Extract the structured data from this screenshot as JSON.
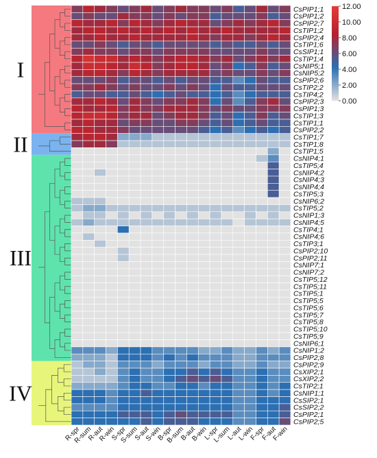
{
  "chart_data": {
    "type": "heatmap",
    "title": "",
    "xlabel": "",
    "ylabel": "",
    "columns": [
      "R-spr",
      "R-sum",
      "R-aut",
      "R-win",
      "S-spr",
      "S-sum",
      "S-aut",
      "S-win",
      "B-spr",
      "B-sum",
      "B-aut",
      "B-win",
      "L-spr",
      "L-sum",
      "L-aut",
      "L-win",
      "F-spr",
      "F-aut",
      "F-win"
    ],
    "rows": [
      "CsPIP1;1",
      "CsPIP1;2",
      "CsPIP2;7",
      "CsTIP1;2",
      "CsPIP2;4",
      "CsTIP1;6",
      "CsSIP1;1",
      "CsTIP1;4",
      "CsNIP5;1",
      "CsNIP5;2",
      "CsPIP2;6",
      "CsTIP2;2",
      "CsTIP4;2",
      "CsPIP2;3",
      "CsPIP1;3",
      "CsTIP1;3",
      "CsTIP1;1",
      "CsPIP2;2",
      "CsTIP1;7",
      "CsTIP1;8",
      "CsTIP1;5",
      "CsNIP4;1",
      "CsTIP5;4",
      "CsNIP4;2",
      "CsNIP4;3",
      "CsNIP4;4",
      "CsTIP5;3",
      "CsNIP6;2",
      "CsTIP5;2",
      "CsNIP1;3",
      "CsNIP4;5",
      "CsTIP4;1",
      "CsNIP4;6",
      "CsTIP3;1",
      "CsPIP2;10",
      "CsPIP2;11",
      "CsNIP7;1",
      "CsNIP7;2",
      "CsTIP5;12",
      "CsTIP5;11",
      "CsTIP5;1",
      "CsTIP5;5",
      "CsTIP5;6",
      "CsTIP5;7",
      "CsTIP5;8",
      "CsTIP5;10",
      "CsTIP5;9",
      "CsNIP6;1",
      "CsNIP1;2",
      "CsPIP2;8",
      "CsPIP2;9",
      "CsXIP2;1",
      "CsXIP2;2",
      "CsTIP2;1",
      "CsNIP1;1",
      "CsSIP2;1",
      "CsSIP2;2",
      "CsPIP2;1",
      "CsPIP2;5"
    ],
    "values": [
      [
        7,
        9,
        8,
        7,
        6,
        7,
        8,
        6,
        7,
        8,
        7,
        7,
        6,
        7,
        5,
        6,
        8,
        6,
        7
      ],
      [
        6,
        7,
        6,
        6,
        8,
        7,
        7,
        6,
        7,
        6,
        7,
        7,
        5,
        6,
        6,
        6,
        7,
        5,
        6
      ],
      [
        9,
        8,
        8,
        9,
        7,
        9,
        8,
        7,
        8,
        9,
        8,
        8,
        6,
        7,
        8,
        7,
        8,
        9,
        7
      ],
      [
        8,
        9,
        9,
        8,
        9,
        8,
        9,
        8,
        9,
        8,
        9,
        8,
        8,
        9,
        8,
        8,
        8,
        8,
        9
      ],
      [
        8,
        8,
        9,
        8,
        8,
        9,
        8,
        8,
        8,
        8,
        9,
        8,
        7,
        8,
        8,
        7,
        8,
        9,
        8
      ],
      [
        6,
        6,
        7,
        6,
        5,
        6,
        6,
        5,
        6,
        6,
        6,
        6,
        5,
        6,
        5,
        5,
        6,
        5,
        6
      ],
      [
        7,
        8,
        7,
        7,
        6,
        7,
        7,
        6,
        7,
        7,
        7,
        7,
        6,
        6,
        6,
        6,
        7,
        6,
        6
      ],
      [
        9,
        11,
        10,
        10,
        8,
        9,
        8,
        7,
        8,
        9,
        9,
        8,
        7,
        8,
        6,
        7,
        8,
        7,
        8
      ],
      [
        8,
        10,
        10,
        9,
        8,
        10,
        9,
        7,
        8,
        9,
        9,
        8,
        6,
        7,
        4,
        5,
        7,
        5,
        6
      ],
      [
        8,
        9,
        9,
        8,
        7,
        9,
        8,
        7,
        8,
        8,
        8,
        8,
        6,
        7,
        6,
        6,
        7,
        6,
        7
      ],
      [
        6,
        6,
        6,
        7,
        5,
        6,
        6,
        5,
        6,
        5,
        6,
        6,
        5,
        5,
        3,
        4,
        6,
        5,
        5
      ],
      [
        7,
        7,
        8,
        7,
        6,
        7,
        6,
        6,
        7,
        6,
        7,
        6,
        4,
        6,
        5,
        5,
        6,
        6,
        6
      ],
      [
        5,
        6,
        6,
        5,
        5,
        6,
        5,
        4,
        5,
        6,
        5,
        5,
        4,
        5,
        3,
        4,
        5,
        5,
        5
      ],
      [
        8,
        8,
        9,
        8,
        6,
        8,
        7,
        6,
        7,
        7,
        8,
        7,
        4,
        6,
        3,
        5,
        7,
        8,
        6
      ],
      [
        9,
        8,
        8,
        9,
        7,
        8,
        7,
        7,
        8,
        8,
        8,
        7,
        6,
        7,
        6,
        6,
        7,
        7,
        7
      ],
      [
        9,
        10,
        10,
        9,
        7,
        8,
        8,
        6,
        7,
        8,
        8,
        7,
        5,
        6,
        4,
        5,
        7,
        5,
        6
      ],
      [
        8,
        9,
        8,
        8,
        6,
        7,
        7,
        6,
        6,
        7,
        7,
        6,
        5,
        6,
        4,
        5,
        6,
        5,
        5
      ],
      [
        9,
        9,
        8,
        8,
        7,
        6,
        6,
        6,
        6,
        6,
        6,
        5,
        4,
        5,
        3,
        4,
        5,
        4,
        5
      ],
      [
        8,
        9,
        9,
        8,
        2,
        2,
        2,
        1,
        1,
        1,
        1,
        1,
        1,
        1,
        1,
        1,
        1,
        1,
        1
      ],
      [
        7,
        8,
        8,
        7,
        1,
        1,
        1,
        1,
        1,
        1,
        1,
        1,
        1,
        1,
        1,
        1,
        1,
        1,
        1
      ],
      [
        0,
        0,
        0,
        0,
        0,
        0,
        0,
        0,
        0,
        0,
        0,
        0,
        0,
        0,
        0,
        0,
        0,
        2,
        0
      ],
      [
        0,
        0,
        0,
        0,
        0,
        0,
        0,
        0,
        0,
        0,
        0,
        0,
        0,
        0,
        0,
        0,
        1,
        3,
        0
      ],
      [
        0,
        0,
        0,
        0,
        0,
        0,
        0,
        0,
        0,
        0,
        0,
        0,
        0,
        0,
        0,
        0,
        0,
        5,
        0
      ],
      [
        0,
        0,
        1,
        0,
        0,
        0,
        0,
        0,
        0,
        0,
        0,
        0,
        0,
        0,
        0,
        0,
        0,
        5,
        0
      ],
      [
        0,
        0,
        0,
        0,
        0,
        0,
        0,
        0,
        0,
        0,
        0,
        0,
        0,
        0,
        0,
        0,
        0,
        5,
        0
      ],
      [
        0,
        0,
        0,
        0,
        0,
        0,
        0,
        0,
        0,
        0,
        0,
        0,
        0,
        0,
        0,
        0,
        0,
        5,
        0
      ],
      [
        0,
        0,
        0,
        0,
        0,
        0,
        0,
        0,
        0,
        0,
        0,
        0,
        0,
        0,
        0,
        0,
        0,
        5,
        0
      ],
      [
        1,
        1,
        1,
        0,
        0,
        0,
        0,
        0,
        0,
        0,
        0,
        0,
        0,
        0,
        0,
        0,
        0,
        0,
        0
      ],
      [
        1,
        2,
        2,
        1,
        1,
        1,
        1,
        1,
        1,
        1,
        1,
        1,
        1,
        1,
        1,
        1,
        1,
        1,
        1
      ],
      [
        0,
        1,
        1,
        0,
        1,
        0,
        1,
        0,
        1,
        0,
        1,
        0,
        1,
        0,
        0,
        1,
        0,
        1,
        0
      ],
      [
        1,
        2,
        1,
        1,
        1,
        1,
        1,
        1,
        1,
        1,
        1,
        1,
        1,
        1,
        0,
        1,
        1,
        1,
        1
      ],
      [
        0,
        0,
        0,
        0,
        4,
        0,
        0,
        0,
        0,
        0,
        0,
        0,
        0,
        0,
        0,
        0,
        0,
        0,
        0
      ],
      [
        0,
        1,
        0,
        0,
        0,
        0,
        0,
        0,
        0,
        0,
        0,
        0,
        0,
        0,
        0,
        0,
        0,
        0,
        0
      ],
      [
        0,
        0,
        1,
        0,
        0,
        0,
        0,
        0,
        0,
        0,
        0,
        0,
        0,
        0,
        0,
        0,
        0,
        0,
        0
      ],
      [
        0,
        0,
        0,
        0,
        1,
        0,
        0,
        0,
        0,
        0,
        0,
        0,
        0,
        0,
        0,
        0,
        0,
        0,
        0
      ],
      [
        0,
        0,
        0,
        0,
        1,
        0,
        0,
        0,
        0,
        0,
        0,
        0,
        0,
        0,
        0,
        0,
        0,
        0,
        0
      ],
      [
        0,
        0,
        0,
        0,
        0,
        0,
        0,
        0,
        0,
        0,
        0,
        0,
        0,
        0,
        0,
        0,
        0,
        0,
        0
      ],
      [
        0,
        0,
        0,
        0,
        0,
        0,
        0,
        0,
        0,
        0,
        0,
        0,
        0,
        0,
        0,
        0,
        0,
        0,
        0
      ],
      [
        0,
        0,
        0,
        0,
        0,
        0,
        0,
        0,
        0,
        0,
        0,
        0,
        0,
        0,
        0,
        0,
        0,
        0,
        0
      ],
      [
        0,
        0,
        0,
        0,
        0,
        0,
        0,
        0,
        0,
        0,
        0,
        0,
        0,
        0,
        0,
        0,
        0,
        0,
        0
      ],
      [
        0,
        0,
        0,
        0,
        0,
        0,
        0,
        0,
        0,
        0,
        0,
        0,
        0,
        0,
        0,
        0,
        0,
        0,
        0
      ],
      [
        0,
        0,
        0,
        0,
        0,
        0,
        0,
        0,
        0,
        0,
        0,
        0,
        0,
        0,
        0,
        0,
        0,
        0,
        0
      ],
      [
        0,
        0,
        0,
        0,
        0,
        0,
        0,
        0,
        0,
        0,
        0,
        0,
        0,
        0,
        0,
        0,
        0,
        0,
        0
      ],
      [
        0,
        0,
        0,
        0,
        0,
        0,
        0,
        0,
        0,
        0,
        0,
        0,
        0,
        0,
        0,
        0,
        0,
        0,
        0
      ],
      [
        0,
        0,
        0,
        0,
        0,
        0,
        0,
        0,
        0,
        0,
        0,
        0,
        0,
        0,
        0,
        0,
        0,
        0,
        0
      ],
      [
        0,
        0,
        0,
        0,
        0,
        0,
        0,
        0,
        0,
        0,
        0,
        0,
        0,
        0,
        0,
        0,
        0,
        0,
        0
      ],
      [
        0,
        0,
        0,
        0,
        0,
        0,
        0,
        0,
        0,
        0,
        0,
        0,
        0,
        0,
        0,
        0,
        0,
        0,
        0
      ],
      [
        0,
        0,
        0,
        0,
        0,
        0,
        0,
        0,
        0,
        0,
        0,
        0,
        0,
        0,
        0,
        0,
        0,
        0,
        0
      ],
      [
        3,
        3,
        3,
        2,
        4,
        4,
        4,
        3,
        3,
        3,
        3,
        2,
        2,
        3,
        2,
        2,
        3,
        2,
        3
      ],
      [
        2,
        2,
        2,
        1,
        4,
        4,
        4,
        3,
        4,
        3,
        4,
        3,
        3,
        3,
        2,
        2,
        3,
        3,
        3
      ],
      [
        1,
        2,
        2,
        1,
        3,
        3,
        3,
        2,
        3,
        3,
        3,
        2,
        3,
        3,
        2,
        2,
        3,
        2,
        2
      ],
      [
        1,
        1,
        2,
        1,
        3,
        4,
        3,
        3,
        4,
        4,
        5,
        4,
        5,
        4,
        3,
        3,
        4,
        3,
        3
      ],
      [
        1,
        1,
        1,
        1,
        3,
        4,
        3,
        3,
        4,
        5,
        6,
        5,
        6,
        5,
        3,
        3,
        4,
        3,
        3
      ],
      [
        2,
        2,
        2,
        2,
        3,
        4,
        4,
        3,
        3,
        4,
        4,
        3,
        4,
        4,
        3,
        3,
        4,
        3,
        4
      ],
      [
        4,
        4,
        4,
        3,
        4,
        4,
        5,
        4,
        4,
        4,
        4,
        4,
        4,
        4,
        3,
        3,
        4,
        3,
        4
      ],
      [
        4,
        4,
        4,
        3,
        4,
        4,
        4,
        4,
        4,
        4,
        4,
        4,
        4,
        4,
        3,
        3,
        4,
        4,
        4
      ],
      [
        3,
        3,
        3,
        3,
        4,
        4,
        4,
        4,
        4,
        4,
        4,
        4,
        4,
        4,
        3,
        3,
        4,
        4,
        5
      ],
      [
        4,
        4,
        4,
        4,
        5,
        5,
        5,
        4,
        5,
        6,
        5,
        5,
        5,
        5,
        3,
        3,
        4,
        4,
        5
      ],
      [
        4,
        4,
        4,
        4,
        4,
        4,
        5,
        4,
        5,
        5,
        5,
        4,
        4,
        4,
        3,
        3,
        4,
        4,
        6
      ]
    ],
    "clusters": [
      {
        "label": "I",
        "first_row": 0,
        "last_row": 17,
        "color": "#f47a80"
      },
      {
        "label": "II",
        "first_row": 18,
        "last_row": 20,
        "color": "#7ab3ef"
      },
      {
        "label": "III",
        "first_row": 21,
        "last_row": 49,
        "color": "#5fe3ac"
      },
      {
        "label": "IV",
        "first_row": 50,
        "last_row": 58,
        "color": "#e7f57b"
      }
    ],
    "colorbar": {
      "ticks": [
        "12.00",
        "10.00",
        "8.00",
        "6.00",
        "4.00",
        "2.00",
        "0.00"
      ],
      "range": [
        0,
        12
      ],
      "colors": [
        "#e2e2e2",
        "#2c6fb2",
        "#b02330",
        "#e53a36"
      ]
    }
  }
}
